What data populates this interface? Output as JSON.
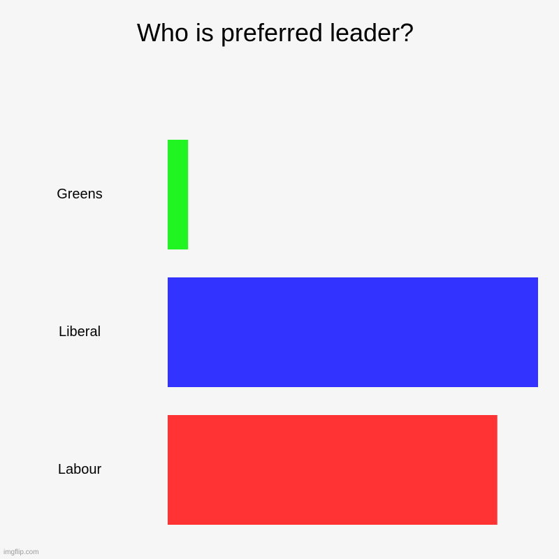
{
  "chart_data": {
    "type": "bar",
    "orientation": "horizontal",
    "title": "Who is preferred leader?",
    "xlabel": "",
    "ylabel": "",
    "categories": [
      "Greens",
      "Liberal",
      "Labour"
    ],
    "values": [
      5.5,
      100,
      89
    ],
    "colors": [
      "#21f521",
      "#3333ff",
      "#ff3333"
    ],
    "xlim": [
      0,
      100
    ],
    "grid": false,
    "legend": "none"
  },
  "watermark": "imgflip.com"
}
